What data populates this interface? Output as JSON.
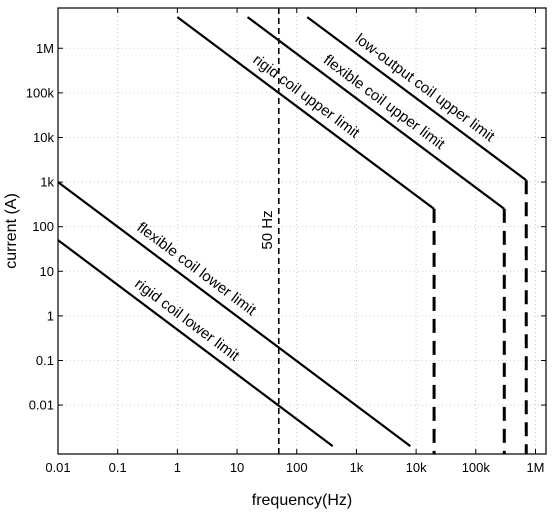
{
  "chart_data": {
    "type": "line",
    "title": "",
    "xlabel": "frequency(Hz)",
    "ylabel": "current (A)",
    "x_scale": "log",
    "y_scale": "log",
    "xlim": [
      0.01,
      1500000
    ],
    "ylim": [
      0.0008,
      8000000
    ],
    "x_ticks": [
      {
        "value": 0.01,
        "label": "0.01"
      },
      {
        "value": 0.1,
        "label": "0.1"
      },
      {
        "value": 1,
        "label": "1"
      },
      {
        "value": 10,
        "label": "10"
      },
      {
        "value": 100,
        "label": "100"
      },
      {
        "value": 1000,
        "label": "1k"
      },
      {
        "value": 10000,
        "label": "10k"
      },
      {
        "value": 100000,
        "label": "100k"
      },
      {
        "value": 1000000,
        "label": "1M"
      }
    ],
    "y_ticks": [
      {
        "value": 0.01,
        "label": "0.01"
      },
      {
        "value": 0.1,
        "label": "0.1"
      },
      {
        "value": 1,
        "label": "1"
      },
      {
        "value": 10,
        "label": "10"
      },
      {
        "value": 100,
        "label": "100"
      },
      {
        "value": 1000,
        "label": "1k"
      },
      {
        "value": 10000,
        "label": "10k"
      },
      {
        "value": 100000,
        "label": "100k"
      },
      {
        "value": 1000000,
        "label": "1M"
      }
    ],
    "grid": true,
    "series": [
      {
        "name": "rigid coil upper limit",
        "x": [
          1,
          20000
        ],
        "y": [
          5000000,
          250
        ]
      },
      {
        "name": "flexible coil upper limit",
        "x": [
          15,
          300000
        ],
        "y": [
          5000000,
          250
        ]
      },
      {
        "name": "low-output coil upper limit",
        "x": [
          150,
          700000
        ],
        "y": [
          5000000,
          1100
        ]
      },
      {
        "name": "flexible coil lower limit",
        "x": [
          0.01,
          8000
        ],
        "y": [
          1000,
          0.0012
        ]
      },
      {
        "name": "rigid coil lower limit",
        "x": [
          0.01,
          400
        ],
        "y": [
          50,
          0.0012
        ]
      }
    ],
    "limit_cutoffs": [
      {
        "x": 20000,
        "y_top": 250
      },
      {
        "x": 300000,
        "y_top": 250
      },
      {
        "x": 700000,
        "y_top": 1100
      }
    ],
    "reference_line": {
      "x": 50,
      "label": "50 Hz"
    }
  }
}
